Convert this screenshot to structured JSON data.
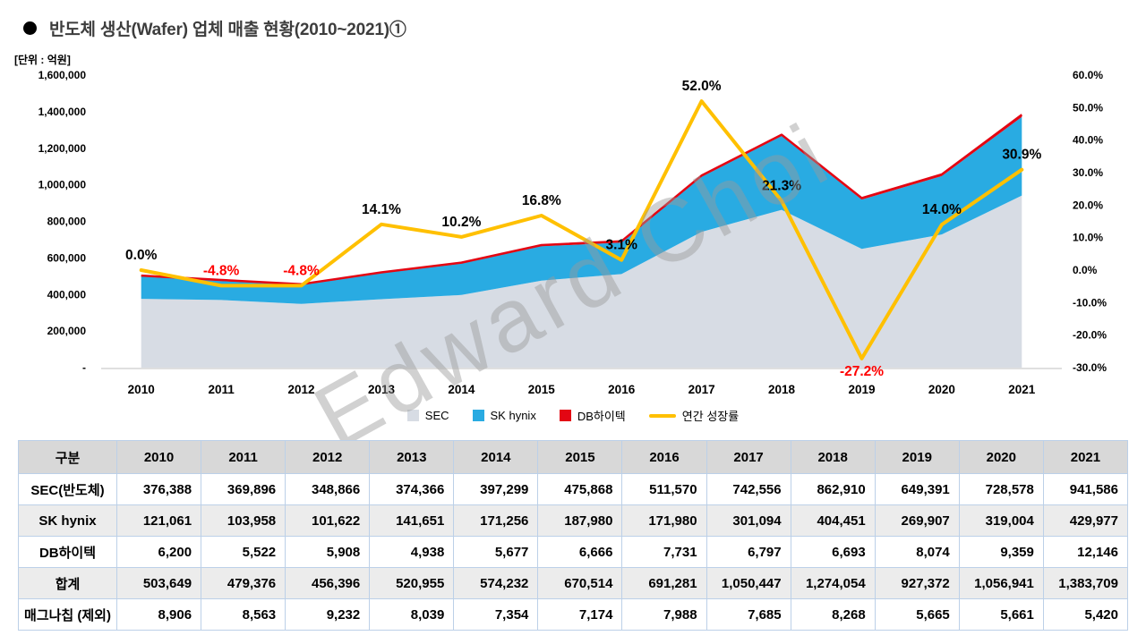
{
  "title": "반도체 생산(Wafer) 업체 매출 현황(2010~2021)①",
  "unit_label": "[단위 : 억원]",
  "watermark": "Edward Choi",
  "legend": {
    "sec": "SEC",
    "hynix": "SK hynix",
    "db": "DB하이텍",
    "growth": "연간 성장률"
  },
  "colors": {
    "sec": "#d7dce4",
    "hynix": "#29abe2",
    "db": "#e30613",
    "growth": "#ffc000",
    "negative": "#ff0000",
    "positive": "#000000",
    "axis_line": "#bfbfbf"
  },
  "chart_data": {
    "type": "combo-stacked-area-line",
    "categories": [
      "2010",
      "2011",
      "2012",
      "2013",
      "2014",
      "2015",
      "2016",
      "2017",
      "2018",
      "2019",
      "2020",
      "2021"
    ],
    "series": [
      {
        "name": "SEC",
        "type": "area",
        "axis": "left",
        "values": [
          376388,
          369896,
          348866,
          374366,
          397299,
          475868,
          511570,
          742556,
          862910,
          649391,
          728578,
          941586
        ]
      },
      {
        "name": "SK hynix",
        "type": "area",
        "axis": "left",
        "values": [
          121061,
          103958,
          101622,
          141651,
          171256,
          187980,
          171980,
          301094,
          404451,
          269907,
          319004,
          429977
        ]
      },
      {
        "name": "DB하이텍",
        "type": "area",
        "axis": "left",
        "values": [
          6200,
          5522,
          5908,
          4938,
          5677,
          6666,
          7731,
          6797,
          6693,
          8074,
          9359,
          12146
        ]
      },
      {
        "name": "연간 성장률",
        "type": "line",
        "axis": "right",
        "values_pct": [
          0.0,
          -4.8,
          -4.8,
          14.1,
          10.2,
          16.8,
          3.1,
          52.0,
          21.3,
          -27.2,
          14.0,
          30.9
        ],
        "labels": [
          "0.0%",
          "-4.8%",
          "-4.8%",
          "14.1%",
          "10.2%",
          "16.8%",
          "3.1%",
          "52.0%",
          "21.3%",
          "-27.2%",
          "14.0%",
          "30.9%"
        ]
      }
    ],
    "left_axis": {
      "min": 0,
      "max": 1600000,
      "ticks": [
        "1,600,000",
        "1,400,000",
        "1,200,000",
        "1,000,000",
        "800,000",
        "600,000",
        "400,000",
        "200,000",
        "-"
      ]
    },
    "right_axis": {
      "min": -30,
      "max": 60,
      "ticks": [
        "60.0%",
        "50.0%",
        "40.0%",
        "30.0%",
        "20.0%",
        "10.0%",
        "0.0%",
        "-10.0%",
        "-20.0%",
        "-30.0%"
      ]
    },
    "grid": "off",
    "legend_position": "bottom"
  },
  "table": {
    "col_header": "구분",
    "years": [
      "2010",
      "2011",
      "2012",
      "2013",
      "2014",
      "2015",
      "2016",
      "2017",
      "2018",
      "2019",
      "2020",
      "2021"
    ],
    "rows": [
      {
        "label": "SEC(반도체)",
        "values": [
          "376,388",
          "369,896",
          "348,866",
          "374,366",
          "397,299",
          "475,868",
          "511,570",
          "742,556",
          "862,910",
          "649,391",
          "728,578",
          "941,586"
        ]
      },
      {
        "label": "SK hynix",
        "values": [
          "121,061",
          "103,958",
          "101,622",
          "141,651",
          "171,256",
          "187,980",
          "171,980",
          "301,094",
          "404,451",
          "269,907",
          "319,004",
          "429,977"
        ]
      },
      {
        "label": "DB하이텍",
        "values": [
          "6,200",
          "5,522",
          "5,908",
          "4,938",
          "5,677",
          "6,666",
          "7,731",
          "6,797",
          "6,693",
          "8,074",
          "9,359",
          "12,146"
        ]
      },
      {
        "label": "합계",
        "values": [
          "503,649",
          "479,376",
          "456,396",
          "520,955",
          "574,232",
          "670,514",
          "691,281",
          "1,050,447",
          "1,274,054",
          "927,372",
          "1,056,941",
          "1,383,709"
        ]
      },
      {
        "label": "매그나칩 (제외)",
        "values": [
          "8,906",
          "8,563",
          "9,232",
          "8,039",
          "7,354",
          "7,174",
          "7,988",
          "7,685",
          "8,268",
          "5,665",
          "5,661",
          "5,420"
        ]
      }
    ]
  }
}
